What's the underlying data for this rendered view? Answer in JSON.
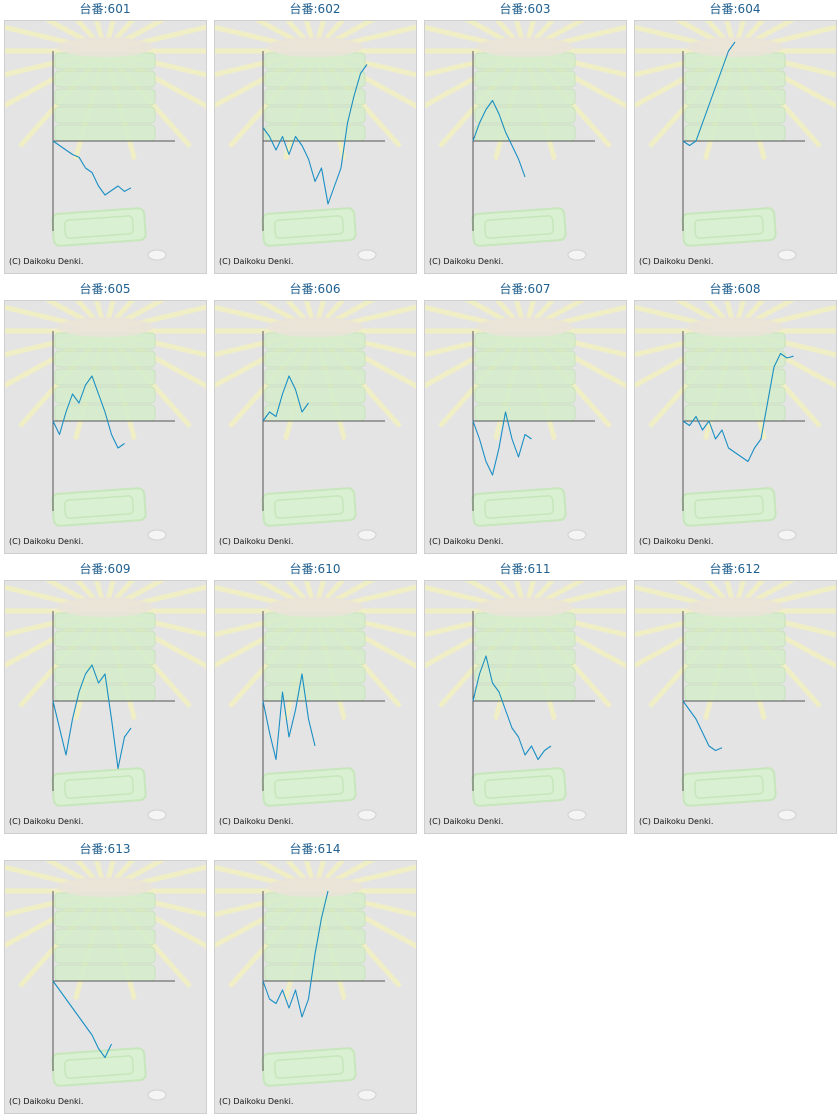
{
  "copyright": "(C) Daikoku Denki.",
  "colors": {
    "line": "#1a8fc4",
    "title": "#1f5f8f",
    "panel": "#e4e4e4"
  },
  "machines": [
    {
      "label": "台番:601",
      "points": [
        [
          0,
          0
        ],
        [
          1,
          -0.05
        ],
        [
          2,
          -0.1
        ],
        [
          3,
          -0.15
        ],
        [
          4,
          -0.18
        ],
        [
          5,
          -0.3
        ],
        [
          6,
          -0.35
        ],
        [
          7,
          -0.5
        ],
        [
          8,
          -0.6
        ],
        [
          9,
          -0.55
        ],
        [
          10,
          -0.5
        ],
        [
          11,
          -0.56
        ],
        [
          12,
          -0.52
        ]
      ]
    },
    {
      "label": "台番:602",
      "points": [
        [
          0,
          0.15
        ],
        [
          1,
          0.05
        ],
        [
          2,
          -0.1
        ],
        [
          3,
          0.05
        ],
        [
          4,
          -0.15
        ],
        [
          5,
          0.05
        ],
        [
          6,
          -0.05
        ],
        [
          7,
          -0.2
        ],
        [
          8,
          -0.45
        ],
        [
          9,
          -0.3
        ],
        [
          10,
          -0.7
        ],
        [
          11,
          -0.5
        ],
        [
          12,
          -0.3
        ],
        [
          13,
          0.2
        ],
        [
          14,
          0.5
        ],
        [
          15,
          0.75
        ],
        [
          16,
          0.85
        ]
      ]
    },
    {
      "label": "台番:603",
      "points": [
        [
          0,
          0
        ],
        [
          1,
          0.2
        ],
        [
          2,
          0.35
        ],
        [
          3,
          0.45
        ],
        [
          4,
          0.3
        ],
        [
          5,
          0.1
        ],
        [
          6,
          -0.05
        ],
        [
          7,
          -0.2
        ],
        [
          8,
          -0.4
        ]
      ]
    },
    {
      "label": "台番:604",
      "points": [
        [
          0,
          0
        ],
        [
          1,
          -0.05
        ],
        [
          2,
          0
        ],
        [
          3,
          0.2
        ],
        [
          4,
          0.4
        ],
        [
          5,
          0.6
        ],
        [
          6,
          0.8
        ],
        [
          7,
          1.0
        ],
        [
          8,
          1.1
        ]
      ]
    },
    {
      "label": "台番:605",
      "points": [
        [
          0,
          0
        ],
        [
          1,
          -0.15
        ],
        [
          2,
          0.1
        ],
        [
          3,
          0.3
        ],
        [
          4,
          0.2
        ],
        [
          5,
          0.4
        ],
        [
          6,
          0.5
        ],
        [
          7,
          0.3
        ],
        [
          8,
          0.1
        ],
        [
          9,
          -0.15
        ],
        [
          10,
          -0.3
        ],
        [
          11,
          -0.25
        ]
      ]
    },
    {
      "label": "台番:606",
      "points": [
        [
          0,
          0
        ],
        [
          1,
          0.1
        ],
        [
          2,
          0.05
        ],
        [
          3,
          0.3
        ],
        [
          4,
          0.5
        ],
        [
          5,
          0.35
        ],
        [
          6,
          0.1
        ],
        [
          7,
          0.2
        ]
      ]
    },
    {
      "label": "台番:607",
      "points": [
        [
          0,
          0
        ],
        [
          1,
          -0.2
        ],
        [
          2,
          -0.45
        ],
        [
          3,
          -0.6
        ],
        [
          4,
          -0.3
        ],
        [
          5,
          0.1
        ],
        [
          6,
          -0.2
        ],
        [
          7,
          -0.4
        ],
        [
          8,
          -0.15
        ],
        [
          9,
          -0.2
        ]
      ]
    },
    {
      "label": "台番:608",
      "points": [
        [
          0,
          0
        ],
        [
          1,
          -0.05
        ],
        [
          2,
          0.05
        ],
        [
          3,
          -0.1
        ],
        [
          4,
          0
        ],
        [
          5,
          -0.2
        ],
        [
          6,
          -0.1
        ],
        [
          7,
          -0.3
        ],
        [
          8,
          -0.35
        ],
        [
          9,
          -0.4
        ],
        [
          10,
          -0.45
        ],
        [
          11,
          -0.3
        ],
        [
          12,
          -0.2
        ],
        [
          13,
          0.2
        ],
        [
          14,
          0.6
        ],
        [
          15,
          0.75
        ],
        [
          16,
          0.7
        ],
        [
          17,
          0.72
        ]
      ]
    },
    {
      "label": "台番:609",
      "points": [
        [
          0,
          0
        ],
        [
          1,
          -0.3
        ],
        [
          2,
          -0.6
        ],
        [
          3,
          -0.2
        ],
        [
          4,
          0.1
        ],
        [
          5,
          0.3
        ],
        [
          6,
          0.4
        ],
        [
          7,
          0.2
        ],
        [
          8,
          0.3
        ],
        [
          9,
          -0.2
        ],
        [
          10,
          -0.75
        ],
        [
          11,
          -0.4
        ],
        [
          12,
          -0.3
        ]
      ]
    },
    {
      "label": "台番:610",
      "points": [
        [
          0,
          0
        ],
        [
          1,
          -0.35
        ],
        [
          2,
          -0.65
        ],
        [
          3,
          0.1
        ],
        [
          4,
          -0.4
        ],
        [
          5,
          -0.1
        ],
        [
          6,
          0.3
        ],
        [
          7,
          -0.2
        ],
        [
          8,
          -0.5
        ]
      ]
    },
    {
      "label": "台番:611",
      "points": [
        [
          0,
          0
        ],
        [
          1,
          0.3
        ],
        [
          2,
          0.5
        ],
        [
          3,
          0.2
        ],
        [
          4,
          0.1
        ],
        [
          5,
          -0.1
        ],
        [
          6,
          -0.3
        ],
        [
          7,
          -0.4
        ],
        [
          8,
          -0.6
        ],
        [
          9,
          -0.5
        ],
        [
          10,
          -0.65
        ],
        [
          11,
          -0.55
        ],
        [
          12,
          -0.5
        ]
      ]
    },
    {
      "label": "台番:612",
      "points": [
        [
          0,
          0
        ],
        [
          1,
          -0.1
        ],
        [
          2,
          -0.2
        ],
        [
          3,
          -0.35
        ],
        [
          4,
          -0.5
        ],
        [
          5,
          -0.55
        ],
        [
          6,
          -0.52
        ]
      ]
    },
    {
      "label": "台番:613",
      "points": [
        [
          0,
          0
        ],
        [
          1,
          -0.1
        ],
        [
          2,
          -0.2
        ],
        [
          3,
          -0.3
        ],
        [
          4,
          -0.4
        ],
        [
          5,
          -0.5
        ],
        [
          6,
          -0.6
        ],
        [
          7,
          -0.75
        ],
        [
          8,
          -0.85
        ],
        [
          9,
          -0.7
        ]
      ]
    },
    {
      "label": "台番:614",
      "points": [
        [
          0,
          0
        ],
        [
          1,
          -0.2
        ],
        [
          2,
          -0.25
        ],
        [
          3,
          -0.1
        ],
        [
          4,
          -0.3
        ],
        [
          5,
          -0.1
        ],
        [
          6,
          -0.4
        ],
        [
          7,
          -0.2
        ],
        [
          8,
          0.3
        ],
        [
          9,
          0.7
        ],
        [
          10,
          1.0
        ]
      ]
    }
  ]
}
